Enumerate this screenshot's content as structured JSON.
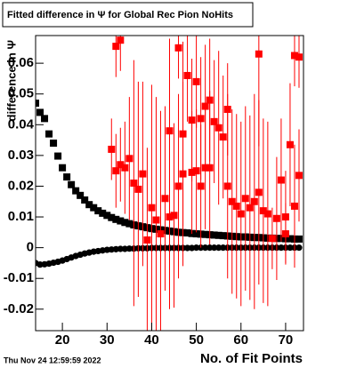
{
  "chart_data": {
    "type": "scatter",
    "title": "Fitted difference in Ψ for Global Rec Pion NoHits",
    "y_label": "difference in Ψ",
    "x_label": "No. of Fit Points",
    "footer": "Thu Nov 24 12:59:59 2022",
    "xlim": [
      14,
      74
    ],
    "xticks": [
      20,
      30,
      40,
      50,
      60,
      70
    ],
    "ylim": [
      -0.027,
      0.069
    ],
    "yticks": [
      -0.02,
      -0.01,
      0,
      0.01,
      0.02,
      0.03,
      0.04,
      0.05,
      0.06
    ],
    "series": [
      {
        "color": "#000000",
        "marker": "square",
        "x": [
          14,
          15,
          16,
          17,
          18,
          19,
          20,
          21,
          22,
          23,
          24,
          25,
          26,
          27,
          28,
          29,
          30,
          31,
          32,
          33,
          34,
          35,
          36,
          37,
          38,
          39,
          40,
          41,
          42,
          43,
          44,
          45,
          46,
          47,
          48,
          49,
          50,
          51,
          52,
          53,
          54,
          55,
          56,
          57,
          58,
          59,
          60,
          61,
          62,
          63,
          64,
          65,
          66,
          67,
          68,
          69,
          70,
          71,
          72,
          73
        ],
        "values": [
          0.047,
          0.044,
          0.042,
          0.037,
          0.034,
          0.0298,
          0.026,
          0.023,
          0.0205,
          0.0185,
          0.017,
          0.0155,
          0.014,
          0.013,
          0.012,
          0.0112,
          0.0105,
          0.0098,
          0.0092,
          0.0087,
          0.0082,
          0.0078,
          0.0074,
          0.0071,
          0.0068,
          0.0065,
          0.0062,
          0.006,
          0.0058,
          0.0056,
          0.0054,
          0.0052,
          0.005,
          0.0049,
          0.0048,
          0.0046,
          0.0045,
          0.0044,
          0.0043,
          0.0042,
          0.0041,
          0.004,
          0.0039,
          0.0038,
          0.0037,
          0.0036,
          0.0035,
          0.0035,
          0.0034,
          0.0033,
          0.0033,
          0.0032,
          0.0031,
          0.0031,
          0.003,
          0.003,
          0.0029,
          0.0029,
          0.0028,
          0.0028
        ]
      },
      {
        "color": "#000000",
        "marker": "circle",
        "x": [
          14,
          15,
          16,
          17,
          18,
          19,
          20,
          21,
          22,
          23,
          24,
          25,
          26,
          27,
          28,
          29,
          30,
          31,
          32,
          33,
          34,
          35,
          36,
          37,
          38,
          39,
          40,
          41,
          42,
          43,
          44,
          45,
          46,
          47,
          48,
          49,
          50,
          51,
          52,
          53,
          54,
          55,
          56,
          57,
          58,
          59,
          60,
          61,
          62,
          63,
          64,
          65,
          66,
          67,
          68,
          69,
          70,
          71,
          72,
          73
        ],
        "values": [
          -0.005,
          -0.0055,
          -0.0054,
          -0.0052,
          -0.0049,
          -0.0046,
          -0.0042,
          -0.0037,
          -0.0032,
          -0.0027,
          -0.0023,
          -0.0019,
          -0.0016,
          -0.0013,
          -0.0011,
          -0.0009,
          -0.0007,
          -0.0006,
          -0.0005,
          -0.0004,
          -0.0004,
          -0.0003,
          -0.0003,
          -0.0002,
          -0.0002,
          -0.0002,
          -0.0001,
          -0.0001,
          -0.0001,
          -0.0001,
          -0.0001,
          -0.0001,
          -0.0001,
          -0.0001,
          -0.0001,
          -0.0001,
          0,
          0,
          0,
          0,
          0,
          0,
          0,
          0,
          0,
          0,
          0,
          0,
          0,
          0,
          0,
          0,
          0,
          0,
          0,
          0,
          0,
          0,
          0,
          0
        ]
      },
      {
        "color": "#ff0000",
        "marker": "square",
        "x": [
          31,
          32,
          32,
          33,
          33,
          34,
          35,
          36,
          37,
          38,
          39,
          40,
          41,
          42,
          43,
          44,
          44,
          45,
          46,
          46,
          47,
          47,
          48,
          49,
          49,
          50,
          50,
          51,
          51,
          52,
          52,
          53,
          53,
          54,
          55,
          56,
          57,
          57,
          58,
          59,
          60,
          61,
          62,
          63,
          64,
          64,
          65,
          66,
          67,
          68,
          69,
          70,
          70,
          71,
          72,
          72,
          73,
          73
        ],
        "values": [
          0.032,
          0.025,
          0.0655,
          0.0675,
          0.027,
          0.026,
          0.029,
          0.021,
          0.019,
          0.024,
          0.0025,
          0.013,
          0.009,
          0.0045,
          0.016,
          0.038,
          0.01,
          0.0105,
          0.02,
          0.065,
          0.037,
          0.024,
          0.056,
          0.0245,
          0.0415,
          0.054,
          0.025,
          0.042,
          0.02,
          0.046,
          0.026,
          0.048,
          0.026,
          0.041,
          0.039,
          0.036,
          0.045,
          0.02,
          0.015,
          0.0135,
          0.011,
          0.016,
          0.013,
          0.015,
          0.063,
          0.018,
          0.012,
          0.011,
          0.003,
          0.0095,
          0.022,
          0.0045,
          0.01,
          0.0335,
          0.0625,
          0.0135,
          0.062,
          0.0235
        ],
        "errors": [
          0.01,
          0.012,
          0.01,
          0.01,
          0.012,
          0.015,
          0.02,
          0.04,
          0.035,
          0.03,
          0.03,
          0.04,
          0.04,
          0.04,
          0.03,
          0.03,
          0.03,
          0.03,
          0.03,
          0.01,
          0.03,
          0.03,
          0.015,
          0.02,
          0.02,
          0.015,
          0.02,
          0.02,
          0.02,
          0.02,
          0.02,
          0.02,
          0.025,
          0.02,
          0.025,
          0.02,
          0.015,
          0.03,
          0.03,
          0.03,
          0.03,
          0.03,
          0.03,
          0.035,
          0.03,
          0.03,
          0.03,
          0.03,
          0.01,
          0.02,
          0.02,
          0.01,
          0.015,
          0.02,
          0.01,
          0.02,
          0.01,
          0.015
        ]
      }
    ]
  }
}
